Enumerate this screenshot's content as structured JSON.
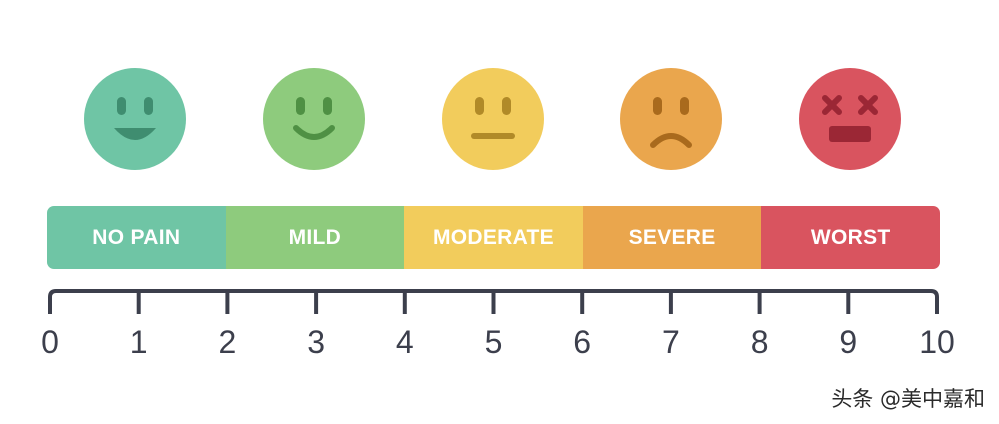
{
  "colors": {
    "no_pain": "#6fc5a5",
    "mild": "#8ecb7d",
    "moderate": "#f2cc5c",
    "severe": "#eaa64d",
    "worst": "#d9545f",
    "feature_no_pain": "#3f8d70",
    "feature_mild": "#4f9044",
    "feature_moderate": "#b18a28",
    "feature_severe": "#a96a1d",
    "feature_worst": "#9b2735",
    "axis": "#3c3f4c"
  },
  "faces": [
    {
      "name": "no-pain-face-icon",
      "expression": "laughing"
    },
    {
      "name": "mild-face-icon",
      "expression": "smile"
    },
    {
      "name": "moderate-face-icon",
      "expression": "neutral"
    },
    {
      "name": "severe-face-icon",
      "expression": "frown"
    },
    {
      "name": "worst-face-icon",
      "expression": "x-eyes"
    }
  ],
  "categories": [
    "NO PAIN",
    "MILD",
    "MODERATE",
    "SEVERE",
    "WORST"
  ],
  "scale": {
    "ticks": [
      "0",
      "1",
      "2",
      "3",
      "4",
      "5",
      "6",
      "7",
      "8",
      "9",
      "10"
    ]
  },
  "watermark": "头条 @美中嘉和"
}
